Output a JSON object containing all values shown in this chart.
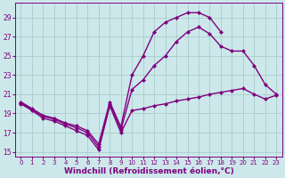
{
  "bg_color": "#cce8ea",
  "grid_color": "#aacccc",
  "line_color": "#800080",
  "marker": "D",
  "markersize": 2.5,
  "linewidth": 1.0,
  "xlabel": "Windchill (Refroidissement éolien,°C)",
  "xlabel_fontsize": 6.5,
  "tick_fontsize": 5.5,
  "ylim": [
    14.5,
    30.5
  ],
  "xlim": [
    -0.5,
    23.5
  ],
  "yticks": [
    15,
    17,
    19,
    21,
    23,
    25,
    27,
    29
  ],
  "xticks": [
    0,
    1,
    2,
    3,
    4,
    5,
    6,
    7,
    8,
    9,
    10,
    11,
    12,
    13,
    14,
    15,
    16,
    17,
    18,
    19,
    20,
    21,
    22,
    23
  ],
  "line1_x": [
    0,
    1,
    2,
    3,
    4,
    5,
    6,
    7,
    8,
    9,
    10,
    11,
    12,
    13,
    14,
    15,
    16,
    17,
    18,
    19,
    20,
    21,
    22,
    23
  ],
  "line1_y": [
    20.0,
    19.3,
    18.5,
    18.2,
    17.7,
    17.2,
    16.7,
    15.2,
    19.8,
    17.0,
    19.3,
    19.5,
    19.8,
    20.0,
    20.3,
    20.5,
    20.7,
    21.0,
    21.2,
    21.4,
    21.6,
    21.0,
    20.5,
    20.9
  ],
  "line2_x": [
    0,
    1,
    2,
    3,
    4,
    5,
    6,
    7,
    8,
    9,
    10,
    11,
    12,
    13,
    14,
    15,
    16,
    17,
    18,
    19,
    20,
    21,
    22,
    23
  ],
  "line2_y": [
    20.1,
    19.4,
    18.7,
    18.4,
    17.9,
    17.5,
    17.0,
    15.5,
    20.0,
    17.3,
    21.5,
    22.5,
    24.0,
    25.0,
    26.5,
    27.5,
    28.0,
    27.3,
    26.0,
    25.5,
    25.5,
    24.0,
    22.0,
    21.0
  ],
  "line3_x": [
    0,
    1,
    2,
    3,
    4,
    5,
    6,
    7,
    8,
    9,
    10,
    11,
    12,
    13,
    14,
    15,
    16,
    17,
    18,
    19,
    20,
    21,
    22,
    23
  ],
  "line3_y": [
    20.2,
    19.5,
    18.8,
    18.5,
    18.0,
    17.7,
    17.2,
    15.8,
    20.2,
    17.6,
    23.0,
    25.0,
    27.5,
    28.5,
    29.0,
    29.5,
    29.5,
    29.0,
    27.5,
    null,
    null,
    null,
    null,
    null
  ]
}
